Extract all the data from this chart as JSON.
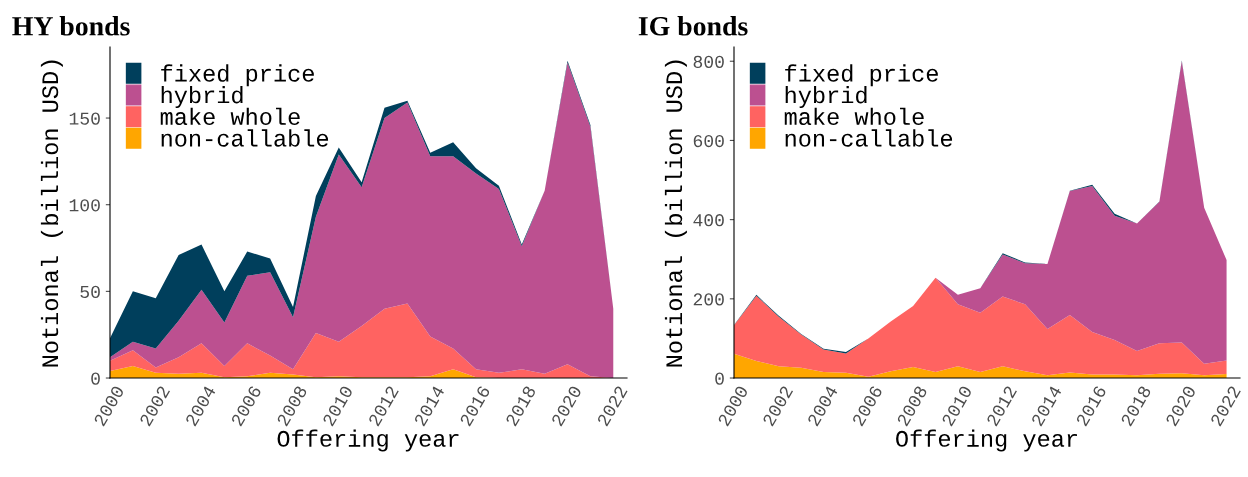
{
  "chart_data": [
    {
      "type": "area",
      "stacked": true,
      "title": "HY bonds",
      "xlabel": "Offering year",
      "ylabel": "Notional (billion USD)",
      "x": [
        2000,
        2001,
        2002,
        2003,
        2004,
        2005,
        2006,
        2007,
        2008,
        2009,
        2010,
        2011,
        2012,
        2013,
        2014,
        2015,
        2016,
        2017,
        2018,
        2019,
        2020,
        2021,
        2022
      ],
      "xlim": [
        2000,
        2022.6
      ],
      "xticks": [
        2000,
        2002,
        2004,
        2006,
        2008,
        2010,
        2012,
        2014,
        2016,
        2018,
        2020,
        2022
      ],
      "ylim": [
        0,
        191
      ],
      "yticks": [
        0,
        50,
        100,
        150
      ],
      "grid": false,
      "legend": "top left",
      "series": [
        {
          "name": "non-callable",
          "color": "#ffa600",
          "values": [
            4,
            7,
            3,
            2.5,
            3,
            0.5,
            1,
            3,
            2,
            0.5,
            1,
            0.5,
            0.5,
            0.5,
            1,
            5,
            0.5,
            0,
            0,
            0,
            0,
            0,
            0
          ]
        },
        {
          "name": "make whole",
          "color": "#ff6361",
          "values": [
            6,
            9,
            3,
            9.5,
            17,
            6.5,
            19,
            10,
            3,
            25.5,
            20,
            29.5,
            39.5,
            42.5,
            23,
            12,
            4.5,
            3,
            5,
            2.5,
            8,
            1,
            0
          ]
        },
        {
          "name": "hybrid",
          "color": "#bc5090",
          "values": [
            2,
            5,
            11,
            21,
            31,
            25,
            39,
            48,
            30,
            67,
            108,
            80,
            110,
            116,
            104,
            111,
            113,
            106,
            71,
            105.5,
            174,
            144,
            40
          ]
        },
        {
          "name": "fixed price",
          "color": "#003f5c",
          "values": [
            11,
            29,
            29,
            38,
            26,
            18,
            14,
            8,
            6,
            12,
            4,
            3,
            6,
            1,
            2,
            8,
            3,
            2,
            1,
            0,
            1,
            1,
            0
          ]
        }
      ]
    },
    {
      "type": "area",
      "stacked": true,
      "title": "IG bonds",
      "xlabel": "Offering year",
      "ylabel": "Notional (billion USD)",
      "x": [
        2000,
        2001,
        2002,
        2003,
        2004,
        2005,
        2006,
        2007,
        2008,
        2009,
        2010,
        2011,
        2012,
        2013,
        2014,
        2015,
        2016,
        2017,
        2018,
        2019,
        2020,
        2021,
        2022
      ],
      "xlim": [
        2000,
        2022.6
      ],
      "xticks": [
        2000,
        2002,
        2004,
        2006,
        2008,
        2010,
        2012,
        2014,
        2016,
        2018,
        2020,
        2022
      ],
      "ylim": [
        0,
        836
      ],
      "yticks": [
        0,
        200,
        400,
        600,
        800
      ],
      "grid": false,
      "legend": "top left",
      "series": [
        {
          "name": "non-callable",
          "color": "#ffa600",
          "values": [
            61,
            43,
            30,
            26,
            15,
            13,
            3,
            17,
            28,
            15,
            30,
            15,
            30,
            17,
            7,
            14,
            9,
            9,
            7,
            11,
            12,
            7,
            10
          ]
        },
        {
          "name": "make whole",
          "color": "#ff6361",
          "values": [
            72,
            165,
            125,
            84,
            57,
            49,
            97,
            126,
            154,
            238,
            156,
            150,
            176,
            169,
            117,
            145,
            107,
            87,
            61,
            77,
            78,
            29,
            34
          ]
        },
        {
          "name": "hybrid",
          "color": "#bc5090",
          "values": [
            0,
            0,
            0,
            0,
            0,
            0,
            0,
            0,
            0,
            0,
            24,
            62,
            106,
            104,
            164,
            313,
            369,
            314,
            322,
            357,
            710,
            394,
            254
          ]
        },
        {
          "name": "fixed price",
          "color": "#003f5c",
          "values": [
            1,
            2,
            2,
            1,
            2,
            4,
            0,
            0,
            0,
            0,
            0,
            0,
            3,
            2,
            0,
            1,
            3,
            5,
            0,
            1,
            2,
            0,
            0
          ]
        }
      ]
    }
  ]
}
